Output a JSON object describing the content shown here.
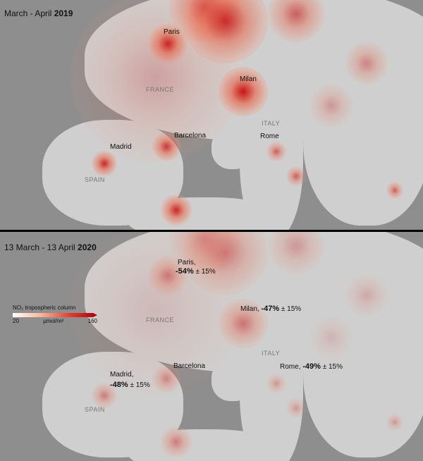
{
  "top_panel": {
    "title_prefix": "March - April ",
    "title_year": "2019",
    "cities": {
      "paris": "Paris",
      "milan": "Milan",
      "rome": "Rome",
      "barcelona": "Barcelona",
      "madrid": "Madrid"
    },
    "countries": {
      "france": "FRANCE",
      "italy": "ITALY",
      "spain": "SPAIN"
    }
  },
  "bottom_panel": {
    "title_prefix": "13 March - 13 April ",
    "title_year": "2020",
    "cities": {
      "paris": "Paris,",
      "paris_change": "-54%",
      "paris_err": " ± 15%",
      "milan": "Milan, ",
      "milan_change": "-47%",
      "milan_err": " ± 15%",
      "rome": "Rome, ",
      "rome_change": "-49%",
      "rome_err": " ± 15%",
      "barcelona": "Barcelona",
      "madrid": "Madrid,",
      "madrid_change": "-48%",
      "madrid_err": " ± 15%"
    },
    "countries": {
      "france": "FRANCE",
      "italy": "ITALY",
      "spain": "SPAIN"
    }
  },
  "legend": {
    "title": "NO₂ tropospheric column",
    "min": "20",
    "unit": "µmol/m²",
    "max": "160",
    "colors": [
      "#ffffff",
      "#f7b59a",
      "#e4412c",
      "#a5000e"
    ]
  }
}
